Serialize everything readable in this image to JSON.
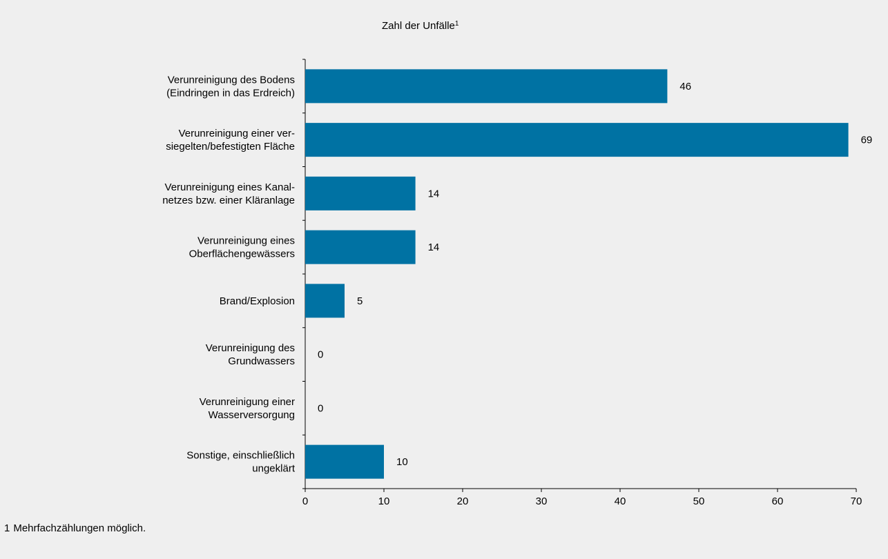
{
  "chart_data": {
    "type": "bar",
    "orientation": "horizontal",
    "title": "Zahl der Unfälle",
    "title_superscript": "1",
    "categories": [
      [
        "Verunreinigung des Bodens",
        "(Eindringen in das Erdreich)"
      ],
      [
        "Verunreinigung einer ver-",
        "siegelten/befestigten Fläche"
      ],
      [
        "Verunreinigung eines Kanal-",
        "netzes bzw. einer Kläranlage"
      ],
      [
        "Verunreinigung eines",
        "Oberflächengewässers"
      ],
      [
        "Brand/Explosion"
      ],
      [
        "Verunreinigung des",
        "Grundwassers"
      ],
      [
        "Verunreinigung einer",
        "Wasserversorgung"
      ],
      [
        "Sonstige, einschließlich",
        "ungeklärt"
      ]
    ],
    "values": [
      46,
      69,
      14,
      14,
      5,
      0,
      0,
      10
    ],
    "value_labels": [
      "46",
      "69",
      "14",
      "14",
      "5",
      "0",
      "0",
      "10"
    ],
    "xlim": [
      0,
      70
    ],
    "xticks": [
      0,
      10,
      20,
      30,
      40,
      50,
      60,
      70
    ],
    "xtick_labels": [
      "0",
      "10",
      "20",
      "30",
      "40",
      "50",
      "60",
      "70"
    ],
    "grid": false,
    "bar_color": "#0072a3"
  },
  "footnote": {
    "number": "1",
    "text": "Mehrfachzählungen möglich."
  }
}
